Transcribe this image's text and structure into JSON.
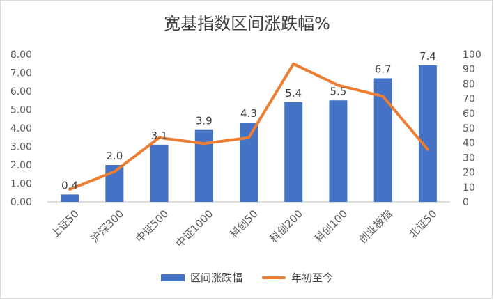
{
  "chart_data": {
    "type": "bar",
    "title": "宽基指数区间涨跌幅%",
    "categories": [
      "上证50",
      "沪深300",
      "中证500",
      "中证1000",
      "科创50",
      "科创200",
      "科创100",
      "创业板指",
      "北证50"
    ],
    "series": [
      {
        "name": "区间涨跌幅",
        "type": "bar",
        "axis": "left",
        "values": [
          0.4,
          2.0,
          3.1,
          3.9,
          4.3,
          5.4,
          5.5,
          6.7,
          7.4
        ],
        "data_labels": [
          "0.4",
          "2.0",
          "3.1",
          "3.9",
          "4.3",
          "5.4",
          "5.5",
          "6.7",
          "7.4"
        ],
        "color": "#4472c4"
      },
      {
        "name": "年初至今",
        "type": "line",
        "axis": "right",
        "values": [
          8.5,
          20.5,
          43.5,
          39.5,
          43.5,
          93.5,
          79.0,
          71.5,
          35.5
        ],
        "color": "#ed7d31"
      }
    ],
    "y_left": {
      "min": 0,
      "max": 8,
      "ticks": [
        "0.00",
        "1.00",
        "2.00",
        "3.00",
        "4.00",
        "5.00",
        "6.00",
        "7.00",
        "8.00"
      ]
    },
    "y_right": {
      "min": 0,
      "max": 100,
      "ticks": [
        "0",
        "10",
        "20",
        "30",
        "40",
        "50",
        "60",
        "70",
        "80",
        "90",
        "100"
      ]
    },
    "legend": "bottom",
    "grid": false
  }
}
